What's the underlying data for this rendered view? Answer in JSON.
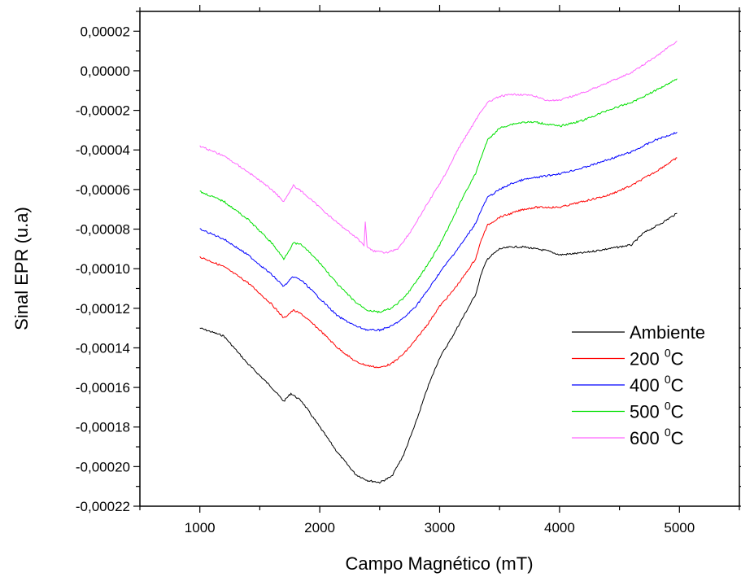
{
  "chart_data": {
    "type": "line",
    "xlabel": "Campo Magnético (mT)",
    "ylabel": "Sinal EPR (u.a)",
    "xlim": [
      500,
      5500
    ],
    "ylim": [
      -0.00022,
      3e-05
    ],
    "x_ticks": [
      1000,
      2000,
      3000,
      4000,
      5000
    ],
    "x_tick_labels": [
      "1000",
      "2000",
      "3000",
      "4000",
      "5000"
    ],
    "y_ticks": [
      2e-05,
      0.0,
      -2e-05,
      -4e-05,
      -6e-05,
      -8e-05,
      -0.0001,
      -0.00012,
      -0.00014,
      -0.00016,
      -0.00018,
      -0.0002,
      -0.00022
    ],
    "y_tick_labels": [
      "0,00002",
      "0,00000",
      "-0,00002",
      "-0,00004",
      "-0,00006",
      "-0,00008",
      "-0,00010",
      "-0,00012",
      "-0,00014",
      "-0,00016",
      "-0,00018",
      "-0,00020",
      "-0,00022"
    ],
    "grid": false,
    "legend_position": "bottom-right",
    "series": [
      {
        "name": "Ambiente",
        "label_main": "Ambiente",
        "label_sup": "",
        "label_tail": "",
        "color": "#000000",
        "points": [
          [
            1000,
            -0.00013
          ],
          [
            1200,
            -0.000134
          ],
          [
            1400,
            -0.000148
          ],
          [
            1600,
            -0.00016
          ],
          [
            1700,
            -0.000167
          ],
          [
            1760,
            -0.000163
          ],
          [
            1850,
            -0.000167
          ],
          [
            2000,
            -0.00018
          ],
          [
            2150,
            -0.000193
          ],
          [
            2300,
            -0.000204
          ],
          [
            2400,
            -0.000207
          ],
          [
            2500,
            -0.000208
          ],
          [
            2600,
            -0.000205
          ],
          [
            2700,
            -0.000194
          ],
          [
            2800,
            -0.000178
          ],
          [
            2900,
            -0.00016
          ],
          [
            3000,
            -0.000145
          ],
          [
            3100,
            -0.000135
          ],
          [
            3200,
            -0.000124
          ],
          [
            3300,
            -0.000113
          ],
          [
            3350,
            -0.000102
          ],
          [
            3400,
            -9.5e-05
          ],
          [
            3500,
            -9e-05
          ],
          [
            3600,
            -8.9e-05
          ],
          [
            3700,
            -8.9e-05
          ],
          [
            3800,
            -9e-05
          ],
          [
            3900,
            -9.1e-05
          ],
          [
            4000,
            -9.3e-05
          ],
          [
            4200,
            -9.2e-05
          ],
          [
            4400,
            -9e-05
          ],
          [
            4600,
            -8.8e-05
          ],
          [
            4700,
            -8.2e-05
          ],
          [
            4850,
            -7.7e-05
          ],
          [
            4980,
            -7.2e-05
          ]
        ]
      },
      {
        "name": "200 °C",
        "label_main": "200 ",
        "label_sup": "0",
        "label_tail": "C",
        "color": "#ff0000",
        "points": [
          [
            1000,
            -9.4e-05
          ],
          [
            1200,
            -9.9e-05
          ],
          [
            1400,
            -0.000107
          ],
          [
            1600,
            -0.000118
          ],
          [
            1700,
            -0.000125
          ],
          [
            1780,
            -0.000121
          ],
          [
            1850,
            -0.000123
          ],
          [
            2000,
            -0.000131
          ],
          [
            2150,
            -0.00014
          ],
          [
            2300,
            -0.000147
          ],
          [
            2400,
            -0.000149
          ],
          [
            2500,
            -0.00015
          ],
          [
            2600,
            -0.000148
          ],
          [
            2700,
            -0.000143
          ],
          [
            2800,
            -0.000136
          ],
          [
            2900,
            -0.000128
          ],
          [
            3000,
            -0.000119
          ],
          [
            3100,
            -0.000112
          ],
          [
            3200,
            -0.000104
          ],
          [
            3300,
            -9.5e-05
          ],
          [
            3350,
            -8.5e-05
          ],
          [
            3400,
            -7.8e-05
          ],
          [
            3500,
            -7.4e-05
          ],
          [
            3600,
            -7.2e-05
          ],
          [
            3700,
            -7e-05
          ],
          [
            3800,
            -6.9e-05
          ],
          [
            3900,
            -6.9e-05
          ],
          [
            4000,
            -6.9e-05
          ],
          [
            4200,
            -6.6e-05
          ],
          [
            4400,
            -6.3e-05
          ],
          [
            4600,
            -5.8e-05
          ],
          [
            4800,
            -5.1e-05
          ],
          [
            4980,
            -4.4e-05
          ]
        ]
      },
      {
        "name": "400 °C",
        "label_main": "400 ",
        "label_sup": "0",
        "label_tail": "C",
        "color": "#0000ff",
        "points": [
          [
            1000,
            -8e-05
          ],
          [
            1200,
            -8.5e-05
          ],
          [
            1400,
            -9.3e-05
          ],
          [
            1600,
            -0.000103
          ],
          [
            1700,
            -0.000109
          ],
          [
            1780,
            -0.000104
          ],
          [
            1850,
            -0.000106
          ],
          [
            2000,
            -0.000115
          ],
          [
            2150,
            -0.000124
          ],
          [
            2300,
            -0.000129
          ],
          [
            2400,
            -0.000131
          ],
          [
            2500,
            -0.000131
          ],
          [
            2600,
            -0.000129
          ],
          [
            2700,
            -0.000125
          ],
          [
            2800,
            -0.000119
          ],
          [
            2900,
            -0.000111
          ],
          [
            3000,
            -0.000102
          ],
          [
            3100,
            -9.4e-05
          ],
          [
            3200,
            -8.6e-05
          ],
          [
            3300,
            -7.7e-05
          ],
          [
            3350,
            -7e-05
          ],
          [
            3400,
            -6.4e-05
          ],
          [
            3500,
            -6e-05
          ],
          [
            3600,
            -5.7e-05
          ],
          [
            3700,
            -5.5e-05
          ],
          [
            3800,
            -5.4e-05
          ],
          [
            3900,
            -5.3e-05
          ],
          [
            4000,
            -5.2e-05
          ],
          [
            4200,
            -4.9e-05
          ],
          [
            4400,
            -4.5e-05
          ],
          [
            4600,
            -4.1e-05
          ],
          [
            4800,
            -3.5e-05
          ],
          [
            4980,
            -3.1e-05
          ]
        ]
      },
      {
        "name": "500 °C",
        "label_main": "500 ",
        "label_sup": "0",
        "label_tail": "C",
        "color": "#00e000",
        "points": [
          [
            1000,
            -6.1e-05
          ],
          [
            1200,
            -6.6e-05
          ],
          [
            1400,
            -7.5e-05
          ],
          [
            1600,
            -8.7e-05
          ],
          [
            1700,
            -9.5e-05
          ],
          [
            1780,
            -8.7e-05
          ],
          [
            1850,
            -8.8e-05
          ],
          [
            2000,
            -9.7e-05
          ],
          [
            2150,
            -0.000108
          ],
          [
            2300,
            -0.000117
          ],
          [
            2400,
            -0.000121
          ],
          [
            2500,
            -0.000122
          ],
          [
            2600,
            -0.00012
          ],
          [
            2700,
            -0.000115
          ],
          [
            2800,
            -0.000107
          ],
          [
            2900,
            -9.8e-05
          ],
          [
            3000,
            -8.8e-05
          ],
          [
            3100,
            -7.6e-05
          ],
          [
            3200,
            -6.3e-05
          ],
          [
            3300,
            -5.2e-05
          ],
          [
            3350,
            -4.3e-05
          ],
          [
            3400,
            -3.5e-05
          ],
          [
            3500,
            -2.9e-05
          ],
          [
            3600,
            -2.7e-05
          ],
          [
            3700,
            -2.6e-05
          ],
          [
            3800,
            -2.6e-05
          ],
          [
            3900,
            -2.7e-05
          ],
          [
            4000,
            -2.8e-05
          ],
          [
            4200,
            -2.5e-05
          ],
          [
            4400,
            -2e-05
          ],
          [
            4600,
            -1.6e-05
          ],
          [
            4800,
            -1e-05
          ],
          [
            4980,
            -4e-06
          ]
        ]
      },
      {
        "name": "600 °C",
        "label_main": "600 ",
        "label_sup": "0",
        "label_tail": "C",
        "color": "#ff66ff",
        "points": [
          [
            1000,
            -3.8e-05
          ],
          [
            1200,
            -4.3e-05
          ],
          [
            1400,
            -5.1e-05
          ],
          [
            1600,
            -6e-05
          ],
          [
            1700,
            -6.6e-05
          ],
          [
            1780,
            -5.8e-05
          ],
          [
            1850,
            -6.1e-05
          ],
          [
            2000,
            -6.9e-05
          ],
          [
            2150,
            -7.7e-05
          ],
          [
            2300,
            -8.4e-05
          ],
          [
            2370,
            -8.8e-05
          ],
          [
            2380,
            -7.6e-05
          ],
          [
            2395,
            -8.9e-05
          ],
          [
            2450,
            -9.1e-05
          ],
          [
            2550,
            -9.2e-05
          ],
          [
            2650,
            -9e-05
          ],
          [
            2750,
            -8.2e-05
          ],
          [
            2850,
            -7.2e-05
          ],
          [
            2950,
            -6.2e-05
          ],
          [
            3050,
            -5.2e-05
          ],
          [
            3150,
            -4e-05
          ],
          [
            3250,
            -3e-05
          ],
          [
            3350,
            -2e-05
          ],
          [
            3400,
            -1.6e-05
          ],
          [
            3500,
            -1.3e-05
          ],
          [
            3600,
            -1.2e-05
          ],
          [
            3700,
            -1.2e-05
          ],
          [
            3800,
            -1.3e-05
          ],
          [
            3900,
            -1.5e-05
          ],
          [
            4000,
            -1.5e-05
          ],
          [
            4200,
            -1.1e-05
          ],
          [
            4400,
            -6e-06
          ],
          [
            4600,
            -1e-06
          ],
          [
            4800,
            7e-06
          ],
          [
            4980,
            1.5e-05
          ]
        ]
      }
    ]
  }
}
